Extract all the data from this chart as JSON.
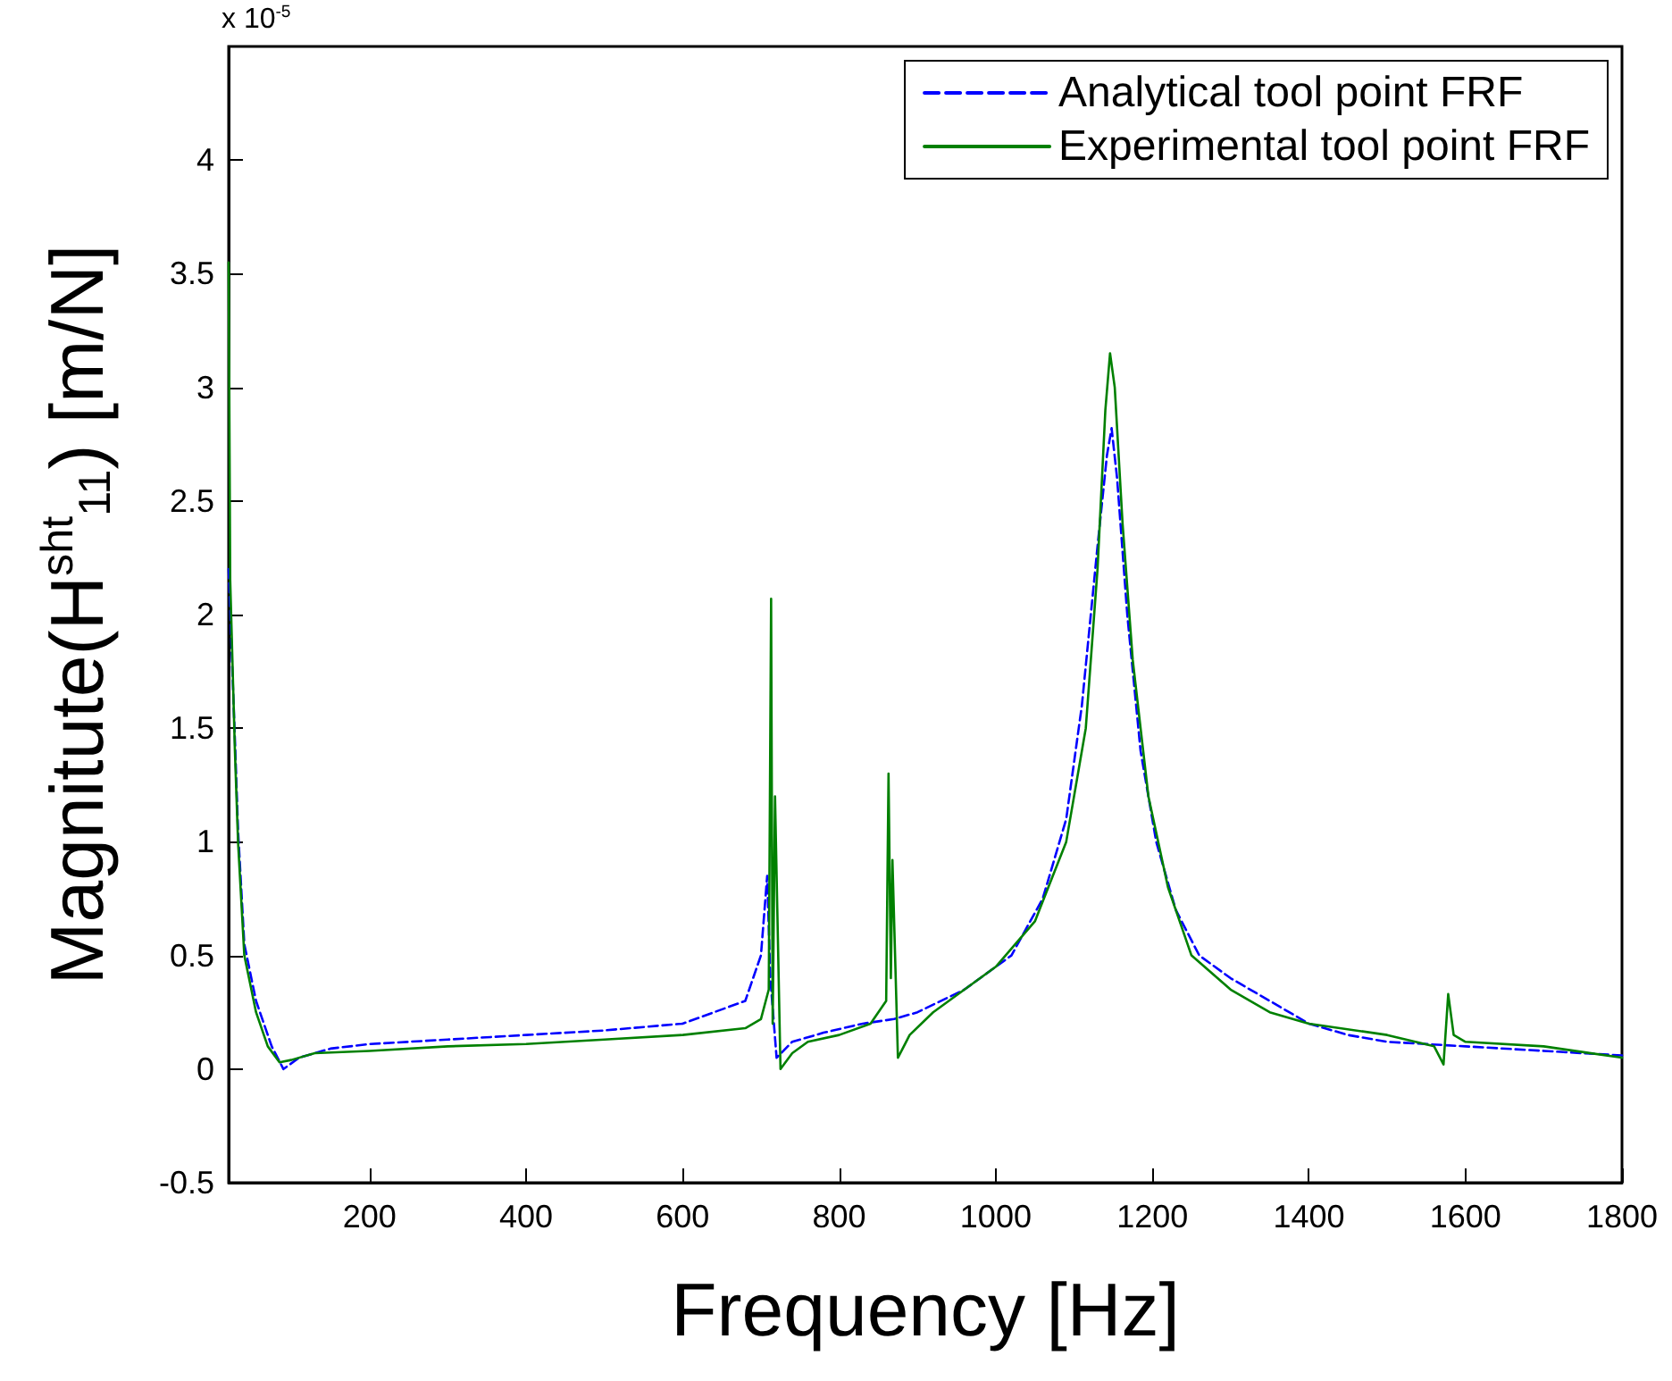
{
  "chart_data": {
    "type": "line",
    "xlabel": "Frequency [Hz]",
    "ylabel": "Magnitute(H$^{sht}$$_{11}$) [m/N]",
    "annotations": [
      "x 10$^{-5}$"
    ],
    "xlim": [
      20,
      1800
    ],
    "xticks": [
      200,
      400,
      600,
      800,
      1000,
      1200,
      1400,
      1600,
      1800
    ],
    "ylim": [
      -0.5,
      4.5
    ],
    "yticks": [
      -0.5,
      0,
      0.5,
      1,
      1.5,
      2,
      2.5,
      3,
      3.5,
      4
    ],
    "grid": false,
    "legend": "top right",
    "marker": "none",
    "series": [
      {
        "name": "Analytical tool point FRF",
        "color": "#0000ff",
        "line_style": "dashed",
        "x": [
          20,
          28,
          32,
          40,
          55,
          75,
          90,
          110,
          150,
          200,
          300,
          400,
          500,
          600,
          680,
          700,
          708,
          712,
          720,
          740,
          780,
          830,
          870,
          900,
          960,
          1020,
          1060,
          1090,
          1110,
          1130,
          1142,
          1148,
          1155,
          1168,
          1185,
          1205,
          1230,
          1260,
          1300,
          1350,
          1400,
          1450,
          1500,
          1600,
          1700,
          1800
        ],
        "values": [
          2.2,
          1.45,
          1.05,
          0.55,
          0.3,
          0.1,
          0.0,
          0.05,
          0.09,
          0.11,
          0.13,
          0.15,
          0.17,
          0.2,
          0.3,
          0.5,
          0.85,
          0.4,
          0.05,
          0.12,
          0.16,
          0.2,
          0.22,
          0.25,
          0.35,
          0.5,
          0.75,
          1.1,
          1.6,
          2.3,
          2.7,
          2.82,
          2.6,
          2.0,
          1.4,
          1.0,
          0.7,
          0.5,
          0.4,
          0.3,
          0.2,
          0.15,
          0.12,
          0.1,
          0.08,
          0.06
        ]
      },
      {
        "name": "Experimental tool point FRF",
        "color": "#008000",
        "line_style": "solid",
        "x": [
          20,
          22,
          28,
          32,
          40,
          55,
          70,
          85,
          100,
          130,
          200,
          300,
          400,
          500,
          600,
          680,
          700,
          710,
          713,
          715,
          718,
          725,
          740,
          760,
          800,
          840,
          860,
          863,
          866,
          868,
          875,
          890,
          920,
          960,
          1000,
          1050,
          1090,
          1115,
          1130,
          1140,
          1146,
          1152,
          1162,
          1175,
          1195,
          1220,
          1250,
          1300,
          1350,
          1400,
          1500,
          1560,
          1572,
          1578,
          1585,
          1600,
          1700,
          1800
        ],
        "values": [
          3.55,
          2.15,
          1.4,
          1.0,
          0.5,
          0.25,
          0.1,
          0.03,
          0.04,
          0.07,
          0.08,
          0.1,
          0.11,
          0.13,
          0.15,
          0.18,
          0.22,
          0.35,
          2.07,
          0.2,
          1.2,
          0.0,
          0.07,
          0.12,
          0.15,
          0.2,
          0.3,
          1.3,
          0.4,
          0.92,
          0.05,
          0.15,
          0.25,
          0.35,
          0.45,
          0.65,
          1.0,
          1.5,
          2.2,
          2.9,
          3.15,
          3.0,
          2.4,
          1.8,
          1.2,
          0.8,
          0.5,
          0.35,
          0.25,
          0.2,
          0.15,
          0.1,
          0.02,
          0.33,
          0.15,
          0.12,
          0.1,
          0.05
        ]
      }
    ]
  }
}
